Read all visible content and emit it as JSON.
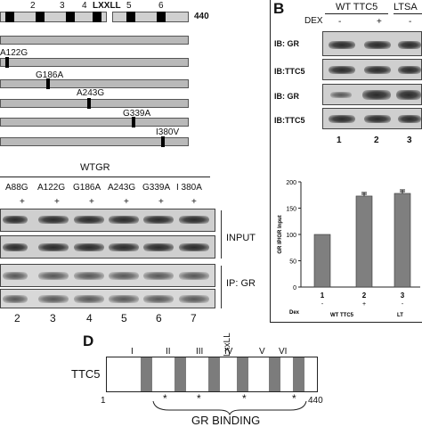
{
  "panelA": {
    "top_domains": [
      "2",
      "3",
      "4",
      "5",
      "6"
    ],
    "motif": "LXXLL",
    "length": "440",
    "mutations": [
      "A122G",
      "G186A",
      "A243G",
      "G339A",
      "I380V"
    ]
  },
  "panelB": {
    "letter": "B",
    "wt_label": "WT TTC5",
    "lts_label": "LTSA",
    "dex_label": "DEX",
    "dex_states": [
      "-",
      "+",
      "-"
    ],
    "ib_labels": [
      "IB: GR",
      "IB:TTC5",
      "IB: GR",
      "IB:TTC5"
    ],
    "lanes": [
      "1",
      "2",
      "3"
    ],
    "chart_data": {
      "type": "bar",
      "ylabel": "GR IP/GR Input",
      "yticks": [
        "0",
        "50",
        "100",
        "150",
        "200"
      ],
      "ylim": [
        0,
        200
      ],
      "categories": [
        "1",
        "2",
        "3"
      ],
      "values": [
        100,
        173,
        178
      ],
      "dex_row_label": "Dex",
      "dex_states": [
        "-",
        "+",
        "-"
      ],
      "group_labels": [
        "WT TTC5",
        "LT"
      ]
    }
  },
  "panelC": {
    "wt_label": "WTGR",
    "lanes": [
      "A88G",
      "A122G",
      "G186A",
      "A243G",
      "G339A",
      "I 380A"
    ],
    "plus": [
      "+",
      "+",
      "+",
      "+",
      "+",
      "+"
    ],
    "input_label": "INPUT",
    "ip_label": "IP: GR",
    "lane_numbers": [
      "2",
      "3",
      "4",
      "5",
      "6",
      "7"
    ]
  },
  "panelD": {
    "letter": "D",
    "protein": "TTC5",
    "domains": [
      "I",
      "II",
      "III",
      "IV",
      "V",
      "VI"
    ],
    "motif": "LxxLL",
    "start": "1",
    "end": "440",
    "asterisks": [
      "*",
      "*",
      "*",
      "*"
    ],
    "binding_label": "GR BINDING"
  }
}
